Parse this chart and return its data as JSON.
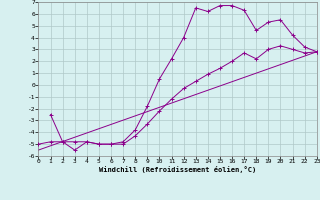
{
  "xlabel": "Windchill (Refroidissement éolien,°C)",
  "background_color": "#d7f0f0",
  "grid_color": "#b0c8c8",
  "line_color": "#8b008b",
  "xlim": [
    0,
    23
  ],
  "ylim": [
    -6,
    7
  ],
  "xticks": [
    0,
    1,
    2,
    3,
    4,
    5,
    6,
    7,
    8,
    9,
    10,
    11,
    12,
    13,
    14,
    15,
    16,
    17,
    18,
    19,
    20,
    21,
    22,
    23
  ],
  "yticks": [
    -6,
    -5,
    -4,
    -3,
    -2,
    -1,
    0,
    1,
    2,
    3,
    4,
    5,
    6,
    7
  ],
  "line1_x": [
    1,
    2,
    3,
    4,
    5,
    6,
    7,
    8,
    9,
    10,
    11,
    12,
    13,
    14,
    15,
    16,
    17,
    18,
    19,
    20,
    21,
    22,
    23
  ],
  "line1_y": [
    -2.5,
    -4.8,
    -4.8,
    -4.8,
    -5.0,
    -5.0,
    -4.8,
    -3.8,
    -1.8,
    0.5,
    2.2,
    4.0,
    6.5,
    6.2,
    6.7,
    6.7,
    6.3,
    4.6,
    5.3,
    5.5,
    4.2,
    3.2,
    2.8
  ],
  "line2_x": [
    0,
    1,
    2,
    3,
    4,
    5,
    6,
    7,
    8,
    9,
    10,
    11,
    12,
    13,
    14,
    15,
    16,
    17,
    18,
    19,
    20,
    21,
    22,
    23
  ],
  "line2_y": [
    -5.0,
    -4.8,
    -4.8,
    -5.5,
    -4.8,
    -5.0,
    -5.0,
    -5.0,
    -4.3,
    -3.3,
    -2.2,
    -1.2,
    -0.3,
    0.3,
    0.9,
    1.4,
    2.0,
    2.7,
    2.2,
    3.0,
    3.3,
    3.0,
    2.7,
    2.8
  ],
  "line3_x": [
    0,
    23
  ],
  "line3_y": [
    -5.5,
    2.8
  ]
}
